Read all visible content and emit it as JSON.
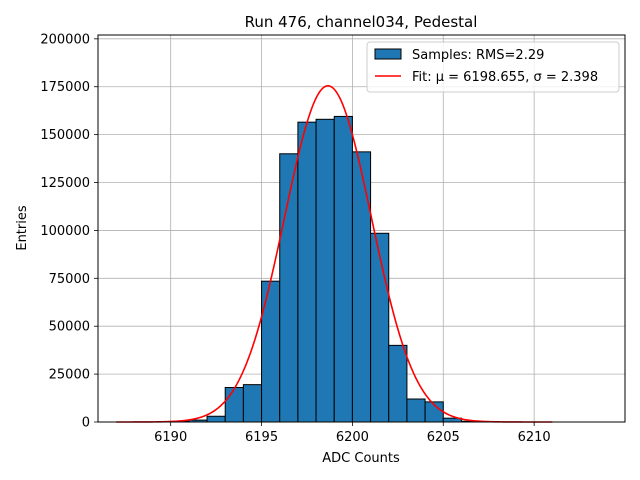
{
  "chart_data": {
    "type": "bar",
    "title": "Run 476, channel034, Pedestal",
    "xlabel": "ADC Counts",
    "ylabel": "Entries",
    "xlim": [
      6186,
      6215
    ],
    "ylim": [
      0,
      202000
    ],
    "xticks": [
      6190,
      6195,
      6200,
      6205,
      6210
    ],
    "yticks": [
      0,
      25000,
      50000,
      75000,
      100000,
      125000,
      150000,
      175000,
      200000
    ],
    "grid": true,
    "legend_position": "top-right",
    "histogram": {
      "name": "Samples: RMS=2.29",
      "color": "#1f77b4",
      "bin_width": 1,
      "bin_starts": [
        6190,
        6191,
        6192,
        6193,
        6194,
        6195,
        6196,
        6197,
        6198,
        6199,
        6200,
        6201,
        6202,
        6203,
        6204,
        6205,
        6206
      ],
      "values": [
        300,
        1000,
        3000,
        18000,
        19500,
        73500,
        140000,
        156500,
        158000,
        159500,
        141000,
        98500,
        40000,
        12000,
        10500,
        2000,
        400
      ]
    },
    "fit": {
      "name": "Fit: μ = 6198.655, σ = 2.398",
      "color": "#ff0000",
      "mu": 6198.655,
      "sigma": 2.398,
      "amplitude": 175500,
      "x_range": [
        6187,
        6211
      ]
    }
  }
}
